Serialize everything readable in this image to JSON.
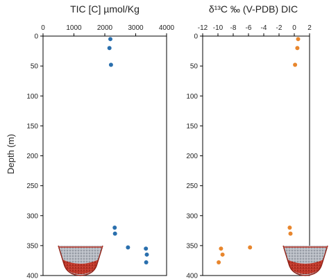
{
  "chart_data": [
    {
      "type": "scatter",
      "title": "TIC [C] µmol/Kg",
      "ylabel": "Depth (m)",
      "xlim": [
        0,
        4000
      ],
      "ylim": [
        400,
        0
      ],
      "x_ticks": [
        0,
        1000,
        2000,
        3000,
        4000
      ],
      "y_ticks": [
        0,
        50,
        100,
        150,
        200,
        250,
        300,
        350,
        400
      ],
      "grid": false,
      "marker_color": "#2a6fad",
      "series": [
        {
          "x": [
            2180,
            2150,
            2200,
            2320,
            2330,
            2750,
            3330,
            3360,
            3340
          ],
          "y": [
            5,
            20,
            48,
            320,
            330,
            353,
            355,
            365,
            378
          ]
        }
      ]
    },
    {
      "type": "scatter",
      "title": "δ¹³C ‰ (V-PDB) DIC",
      "xlim": [
        -12,
        2
      ],
      "ylim": [
        400,
        0
      ],
      "x_ticks": [
        -12,
        -10,
        -8,
        -6,
        -4,
        -2,
        0,
        2
      ],
      "y_ticks": [
        0,
        50,
        100,
        150,
        200,
        250,
        300,
        350,
        400
      ],
      "grid": false,
      "marker_color": "#e8862d",
      "series": [
        {
          "x": [
            0.5,
            0.4,
            0.1,
            -0.6,
            -0.5,
            -5.8,
            -9.6,
            -9.4,
            -9.9
          ],
          "y": [
            5,
            20,
            48,
            320,
            330,
            353,
            355,
            365,
            378
          ]
        }
      ]
    }
  ]
}
